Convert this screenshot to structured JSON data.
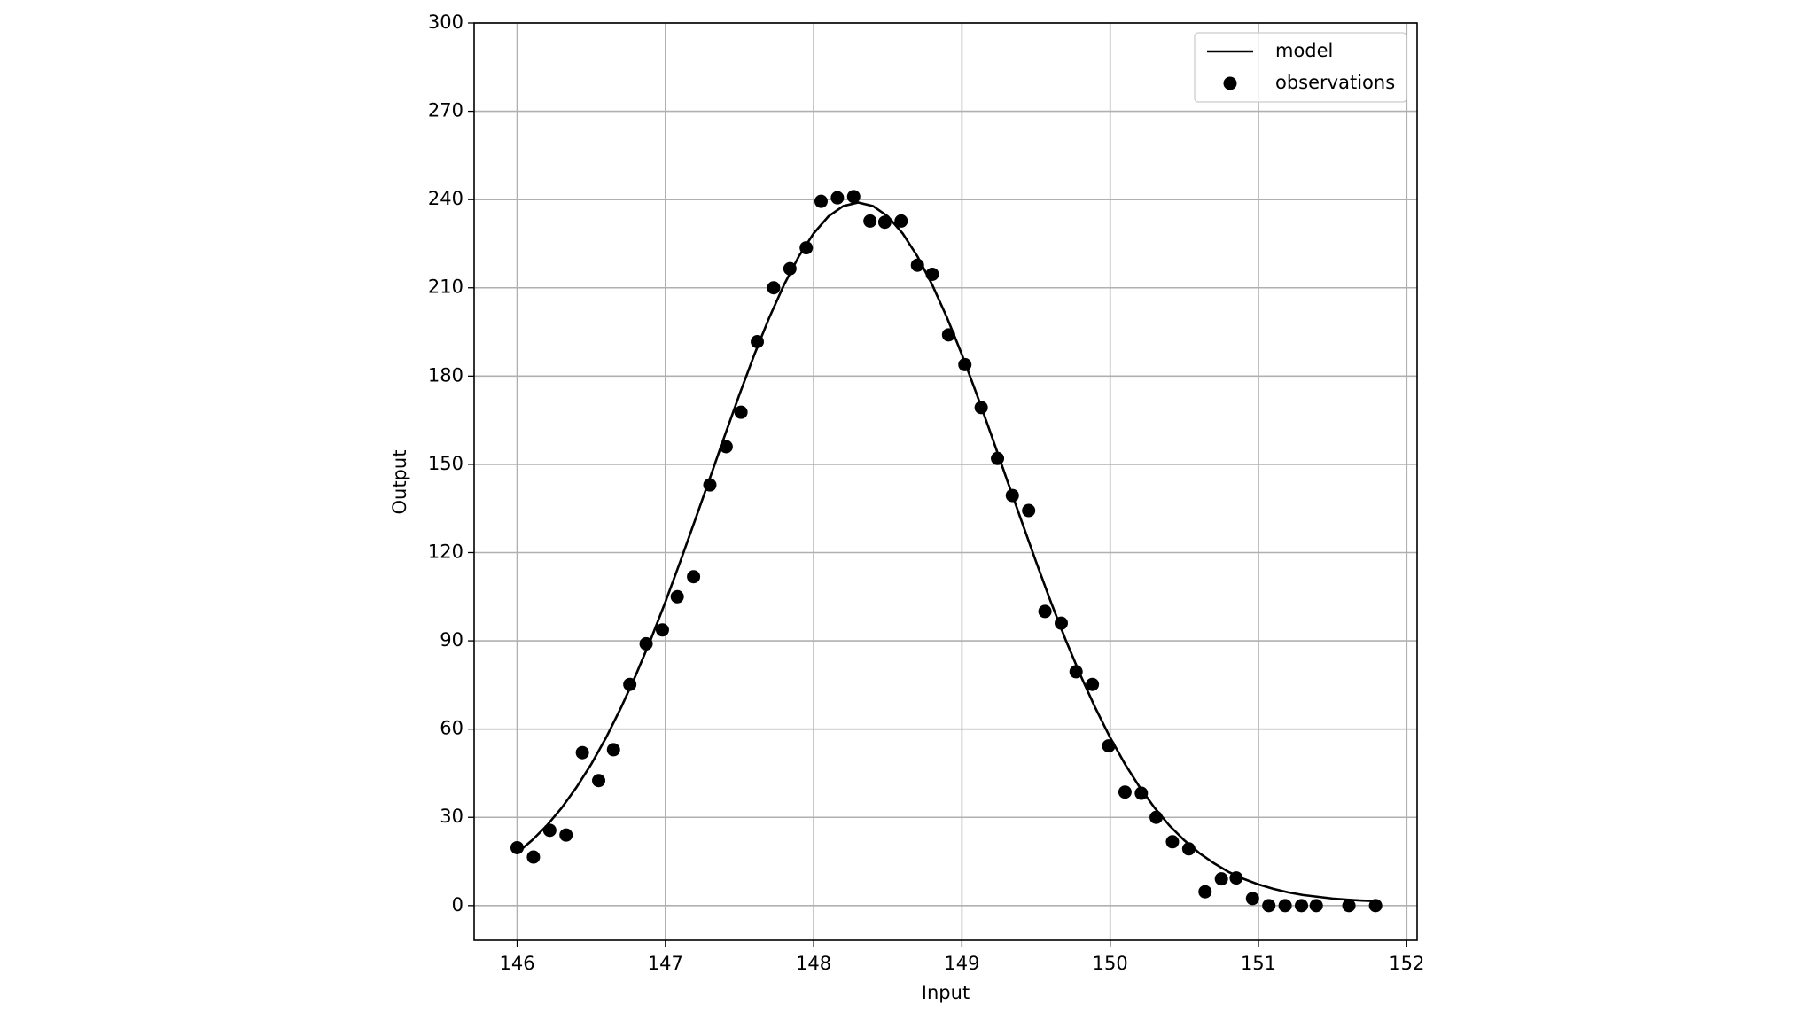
{
  "chart_data": {
    "type": "line",
    "xlabel": "Input",
    "ylabel": "Output",
    "xlim": [
      145.71,
      152.07
    ],
    "ylim": [
      -11.8,
      300
    ],
    "xticks": [
      146,
      147,
      148,
      149,
      150,
      151,
      152
    ],
    "yticks": [
      0,
      30,
      60,
      90,
      120,
      150,
      180,
      210,
      240,
      270,
      300
    ],
    "grid": true,
    "legend": "upper right",
    "series": [
      {
        "name": "model",
        "type": "line",
        "color": "#000000",
        "x": [
          146.0,
          146.1,
          146.2,
          146.3,
          146.4,
          146.5,
          146.6,
          146.7,
          146.8,
          146.9,
          147.0,
          147.1,
          147.2,
          147.3,
          147.4,
          147.5,
          147.6,
          147.7,
          147.8,
          147.9,
          148.0,
          148.1,
          148.2,
          148.3,
          148.4,
          148.5,
          148.6,
          148.7,
          148.8,
          148.9,
          149.0,
          149.1,
          149.2,
          149.3,
          149.4,
          149.5,
          149.6,
          149.7,
          149.8,
          149.9,
          150.0,
          150.1,
          150.2,
          150.3,
          150.4,
          150.5,
          150.6,
          150.7,
          150.8,
          150.9,
          151.0,
          151.1,
          151.2,
          151.3,
          151.4,
          151.5,
          151.6,
          151.7,
          151.8
        ],
        "values": [
          17.9,
          22.2,
          27.2,
          33.2,
          40.2,
          48.1,
          57.1,
          67.2,
          78.3,
          90.3,
          103.2,
          116.9,
          131.0,
          145.3,
          159.7,
          173.8,
          187.3,
          199.8,
          211.0,
          220.7,
          228.5,
          234.3,
          237.8,
          239,
          237.8,
          234.3,
          228.5,
          220.7,
          211.0,
          199.8,
          187.3,
          173.8,
          159.7,
          145.3,
          131.0,
          116.9,
          103.2,
          90.3,
          78.3,
          67.2,
          57.1,
          48.1,
          40.2,
          33.2,
          27.2,
          22.2,
          17.9,
          14.4,
          11.4,
          9.1,
          7.2,
          5.7,
          4.5,
          3.6,
          3.0,
          2.4,
          2.0,
          1.7,
          1.5
        ]
      },
      {
        "name": "observations",
        "type": "scatter",
        "color": "#000000",
        "x": [
          146.0,
          146.11,
          146.22,
          146.33,
          146.44,
          146.55,
          146.65,
          146.76,
          146.87,
          146.98,
          147.08,
          147.19,
          147.3,
          147.41,
          147.51,
          147.62,
          147.73,
          147.84,
          147.95,
          148.05,
          148.16,
          148.27,
          148.38,
          148.48,
          148.59,
          148.7,
          148.8,
          148.91,
          149.02,
          149.13,
          149.24,
          149.34,
          149.45,
          149.56,
          149.67,
          149.77,
          149.88,
          149.99,
          150.1,
          150.21,
          150.31,
          150.42,
          150.53,
          150.64,
          150.75,
          150.85,
          150.96,
          151.07,
          151.18,
          151.29,
          151.39,
          151.61,
          151.79
        ],
        "values": [
          19.7,
          16.5,
          25.6,
          24.0,
          52,
          42.5,
          53,
          75.2,
          89,
          93.7,
          105,
          111.8,
          143,
          156,
          167.7,
          191.7,
          210,
          216.5,
          223.6,
          239.4,
          240.6,
          241,
          232.7,
          232.3,
          232.7,
          217.7,
          214.6,
          194,
          183.9,
          169.3,
          152,
          139.4,
          134.3,
          100,
          96,
          79.5,
          75.2,
          54.3,
          38.6,
          38.2,
          30,
          21.7,
          19.3,
          4.7,
          9.1,
          9.4,
          2.4,
          0,
          0,
          0,
          0,
          0,
          0
        ]
      }
    ]
  }
}
